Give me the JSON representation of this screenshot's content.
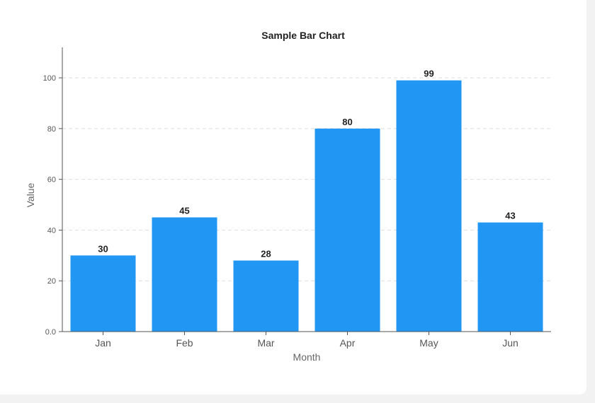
{
  "chart_data": {
    "type": "bar",
    "title": "Sample Bar Chart",
    "xlabel": "Month",
    "ylabel": "Value",
    "categories": [
      "Jan",
      "Feb",
      "Mar",
      "Apr",
      "May",
      "Jun"
    ],
    "values": [
      30,
      45,
      28,
      80,
      99,
      43
    ],
    "ylim": [
      0,
      112
    ],
    "yticks": [
      0,
      20,
      40,
      60,
      80,
      100
    ],
    "ytick_labels": [
      "0.0",
      "20",
      "40",
      "60",
      "80",
      "100"
    ],
    "grid": true,
    "data_labels": true,
    "legend": "none"
  },
  "colors": {
    "bar": "#2196f3",
    "grid": "#dddddd",
    "axis": "#555555"
  }
}
